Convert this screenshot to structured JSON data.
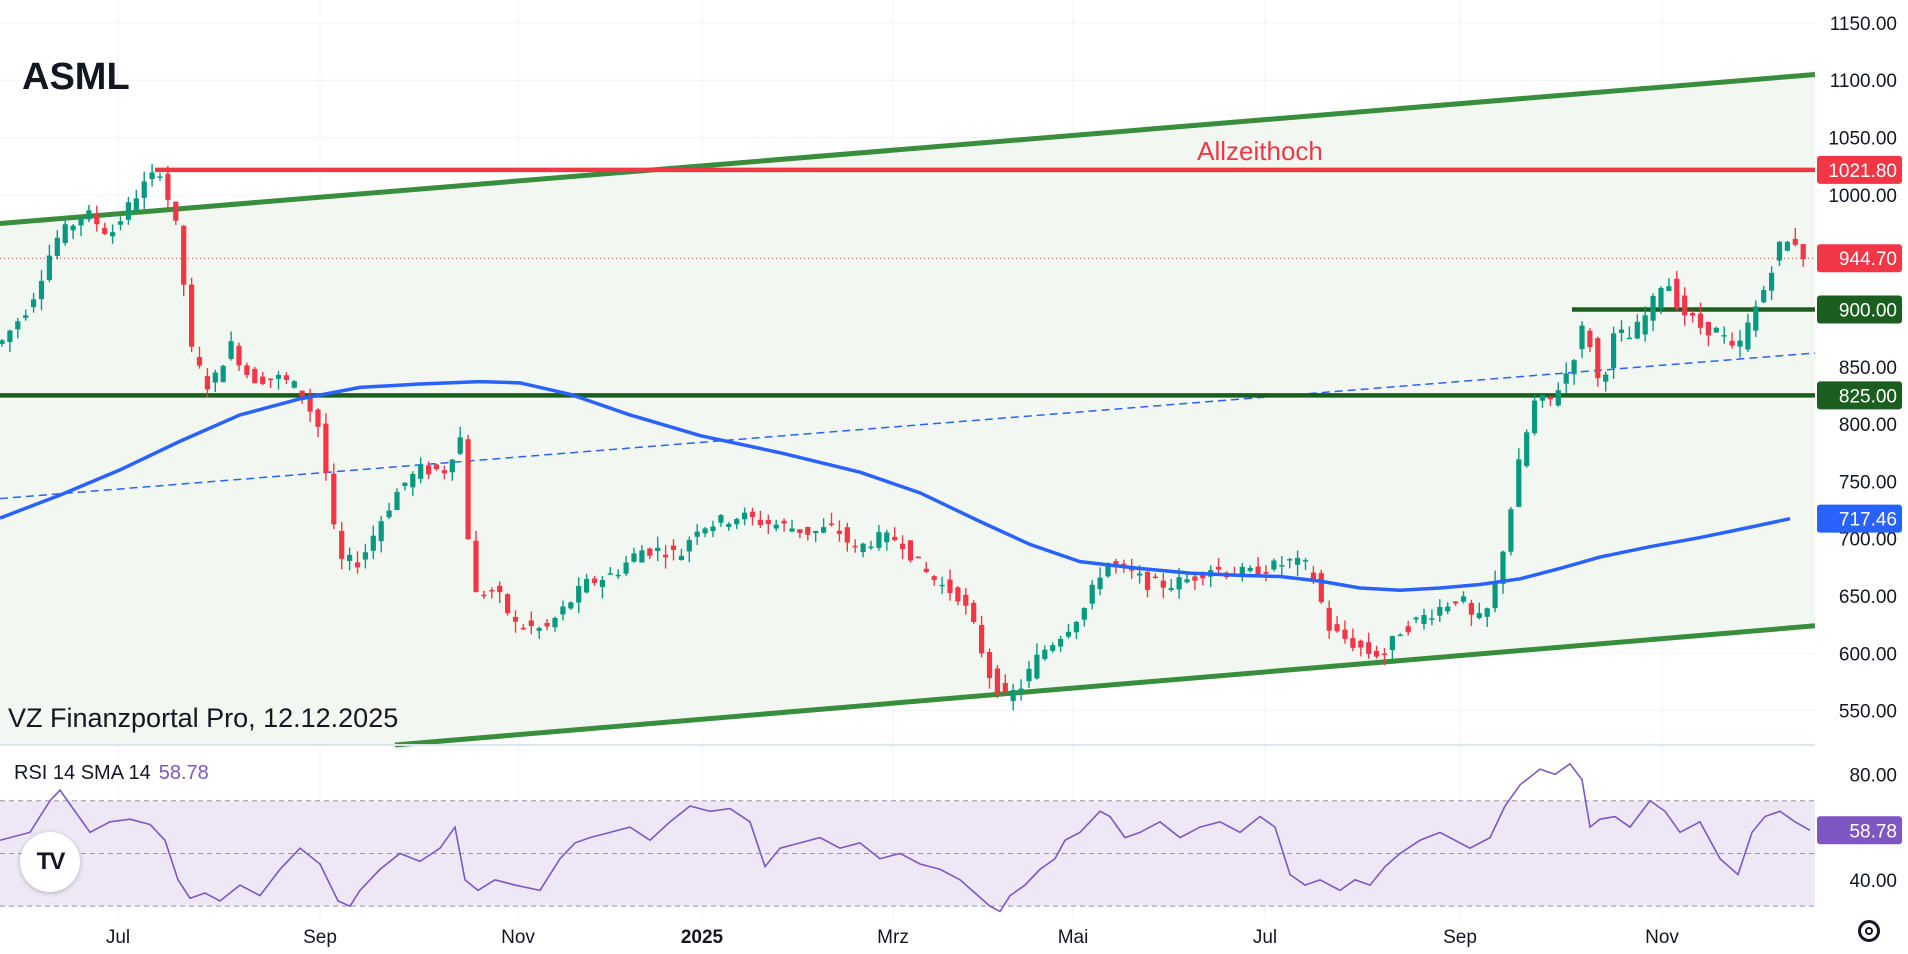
{
  "symbol": "ASML",
  "source": "VZ Finanzportal Pro, 12.12.2025",
  "chart_data": {
    "type": "candlestick",
    "x_axis": {
      "labels": [
        "Jul",
        "Sep",
        "Nov",
        "2025",
        "Mrz",
        "Mai",
        "Jul",
        "Sep",
        "Nov"
      ]
    },
    "y_axis": {
      "ticks": [
        "1150.00",
        "1100.00",
        "1050.00",
        "1000.00",
        "950.00",
        "900.00",
        "850.00",
        "800.00",
        "750.00",
        "700.00",
        "650.00",
        "600.00",
        "550.00"
      ],
      "range": [
        520,
        1170
      ]
    },
    "price_path": [
      [
        0,
        870
      ],
      [
        30,
        905
      ],
      [
        55,
        960
      ],
      [
        85,
        985
      ],
      [
        110,
        965
      ],
      [
        140,
        1005
      ],
      [
        160,
        1021.8
      ],
      [
        178,
        965
      ],
      [
        192,
        860
      ],
      [
        210,
        830
      ],
      [
        230,
        870
      ],
      [
        250,
        840
      ],
      [
        280,
        840
      ],
      [
        300,
        830
      ],
      [
        320,
        795
      ],
      [
        338,
        680
      ],
      [
        360,
        680
      ],
      [
        380,
        715
      ],
      [
        400,
        745
      ],
      [
        420,
        760
      ],
      [
        445,
        760
      ],
      [
        460,
        790
      ],
      [
        473,
        650
      ],
      [
        495,
        655
      ],
      [
        515,
        625
      ],
      [
        545,
        620
      ],
      [
        565,
        640
      ],
      [
        585,
        660
      ],
      [
        615,
        670
      ],
      [
        640,
        690
      ],
      [
        665,
        690
      ],
      [
        680,
        685
      ],
      [
        695,
        710
      ],
      [
        720,
        715
      ],
      [
        740,
        720
      ],
      [
        760,
        715
      ],
      [
        790,
        710
      ],
      [
        810,
        705
      ],
      [
        835,
        710
      ],
      [
        855,
        690
      ],
      [
        875,
        700
      ],
      [
        900,
        700
      ],
      [
        920,
        675
      ],
      [
        940,
        660
      ],
      [
        960,
        650
      ],
      [
        975,
        620
      ],
      [
        990,
        580
      ],
      [
        1005,
        560
      ],
      [
        1020,
        570
      ],
      [
        1040,
        600
      ],
      [
        1065,
        620
      ],
      [
        1085,
        640
      ],
      [
        1105,
        680
      ],
      [
        1130,
        670
      ],
      [
        1150,
        660
      ],
      [
        1170,
        660
      ],
      [
        1190,
        665
      ],
      [
        1210,
        675
      ],
      [
        1230,
        670
      ],
      [
        1250,
        670
      ],
      [
        1270,
        675
      ],
      [
        1290,
        680
      ],
      [
        1310,
        675
      ],
      [
        1330,
        620
      ],
      [
        1350,
        610
      ],
      [
        1370,
        600
      ],
      [
        1385,
        600
      ],
      [
        1400,
        620
      ],
      [
        1420,
        630
      ],
      [
        1440,
        640
      ],
      [
        1460,
        650
      ],
      [
        1475,
        625
      ],
      [
        1490,
        640
      ],
      [
        1505,
        700
      ],
      [
        1520,
        770
      ],
      [
        1535,
        820
      ],
      [
        1550,
        820
      ],
      [
        1570,
        850
      ],
      [
        1585,
        890
      ],
      [
        1600,
        830
      ],
      [
        1615,
        880
      ],
      [
        1630,
        875
      ],
      [
        1650,
        900
      ],
      [
        1665,
        930
      ],
      [
        1680,
        900
      ],
      [
        1700,
        885
      ],
      [
        1720,
        880
      ],
      [
        1735,
        860
      ],
      [
        1750,
        890
      ],
      [
        1765,
        920
      ],
      [
        1778,
        955
      ],
      [
        1795,
        960
      ],
      [
        1805,
        944.7
      ]
    ],
    "sma_200": [
      [
        0,
        718
      ],
      [
        60,
        738
      ],
      [
        120,
        760
      ],
      [
        180,
        785
      ],
      [
        240,
        808
      ],
      [
        300,
        822
      ],
      [
        360,
        832
      ],
      [
        420,
        835
      ],
      [
        480,
        837
      ],
      [
        520,
        836
      ],
      [
        570,
        826
      ],
      [
        630,
        808
      ],
      [
        700,
        790
      ],
      [
        780,
        775
      ],
      [
        860,
        758
      ],
      [
        920,
        740
      ],
      [
        980,
        715
      ],
      [
        1030,
        695
      ],
      [
        1080,
        680
      ],
      [
        1140,
        674
      ],
      [
        1190,
        670
      ],
      [
        1240,
        668
      ],
      [
        1280,
        667
      ],
      [
        1320,
        663
      ],
      [
        1360,
        657
      ],
      [
        1400,
        655
      ],
      [
        1440,
        657
      ],
      [
        1480,
        660
      ],
      [
        1520,
        665
      ],
      [
        1560,
        674
      ],
      [
        1600,
        684
      ],
      [
        1650,
        693
      ],
      [
        1700,
        701
      ],
      [
        1750,
        710
      ],
      [
        1790,
        717.46
      ]
    ],
    "lines": [
      {
        "name": "Allzeithoch",
        "value": 1021.8,
        "color": "#f23645"
      },
      {
        "value": 900.0,
        "color": "#1b5e20",
        "from": 1572
      },
      {
        "value": 825.0,
        "color": "#1b5e20"
      }
    ],
    "channel": {
      "upper": [
        [
          0,
          975
        ],
        [
          1815,
          1105
        ]
      ],
      "lower": [
        [
          395,
          520
        ],
        [
          1815,
          624
        ]
      ],
      "color": "#388e3c"
    },
    "trendline_dashed": {
      "points": [
        [
          0,
          735
        ],
        [
          1815,
          862
        ]
      ],
      "color": "#2962ff"
    },
    "price_labels": [
      {
        "text": "1021.80",
        "value": 1021.8,
        "color": "#f23645"
      },
      {
        "text": "944.70",
        "value": 944.7,
        "color": "#f23645"
      },
      {
        "text": "900.00",
        "value": 900.0,
        "color": "#1b5e20"
      },
      {
        "text": "825.00",
        "value": 825.0,
        "color": "#1b5e20"
      },
      {
        "text": "717.46",
        "value": 717.46,
        "color": "#2962ff"
      }
    ],
    "rsi": {
      "legend": "RSI 14 SMA 14",
      "value_label": "58.78",
      "ticks": [
        "80.00",
        "40.00"
      ],
      "range": [
        24,
        90
      ],
      "band": [
        30,
        70
      ],
      "mid": 50,
      "color": "#7e57c2",
      "band_color": "#ede7f6",
      "values": [
        [
          0,
          55
        ],
        [
          30,
          58
        ],
        [
          50,
          70
        ],
        [
          60,
          74
        ],
        [
          75,
          66
        ],
        [
          90,
          58
        ],
        [
          110,
          62
        ],
        [
          130,
          63
        ],
        [
          150,
          61
        ],
        [
          165,
          55
        ],
        [
          178,
          40
        ],
        [
          190,
          33
        ],
        [
          205,
          35
        ],
        [
          220,
          32
        ],
        [
          240,
          38
        ],
        [
          260,
          34
        ],
        [
          280,
          44
        ],
        [
          300,
          52
        ],
        [
          320,
          46
        ],
        [
          338,
          32
        ],
        [
          350,
          30
        ],
        [
          360,
          36
        ],
        [
          380,
          44
        ],
        [
          400,
          50
        ],
        [
          420,
          47
        ],
        [
          440,
          52
        ],
        [
          455,
          60
        ],
        [
          465,
          40
        ],
        [
          478,
          36
        ],
        [
          495,
          40
        ],
        [
          515,
          38
        ],
        [
          540,
          36
        ],
        [
          560,
          48
        ],
        [
          575,
          54
        ],
        [
          590,
          56
        ],
        [
          610,
          58
        ],
        [
          630,
          60
        ],
        [
          650,
          55
        ],
        [
          670,
          62
        ],
        [
          690,
          68
        ],
        [
          710,
          66
        ],
        [
          730,
          67
        ],
        [
          750,
          62
        ],
        [
          765,
          45
        ],
        [
          780,
          52
        ],
        [
          800,
          54
        ],
        [
          820,
          56
        ],
        [
          840,
          52
        ],
        [
          860,
          54
        ],
        [
          880,
          48
        ],
        [
          900,
          50
        ],
        [
          920,
          46
        ],
        [
          940,
          44
        ],
        [
          960,
          40
        ],
        [
          975,
          35
        ],
        [
          990,
          30
        ],
        [
          1000,
          28
        ],
        [
          1010,
          34
        ],
        [
          1025,
          38
        ],
        [
          1040,
          44
        ],
        [
          1055,
          48
        ],
        [
          1065,
          55
        ],
        [
          1080,
          58
        ],
        [
          1100,
          66
        ],
        [
          1110,
          64
        ],
        [
          1125,
          56
        ],
        [
          1140,
          58
        ],
        [
          1160,
          62
        ],
        [
          1180,
          56
        ],
        [
          1200,
          60
        ],
        [
          1220,
          62
        ],
        [
          1240,
          58
        ],
        [
          1260,
          64
        ],
        [
          1275,
          60
        ],
        [
          1290,
          42
        ],
        [
          1305,
          38
        ],
        [
          1320,
          40
        ],
        [
          1340,
          36
        ],
        [
          1355,
          40
        ],
        [
          1370,
          38
        ],
        [
          1385,
          45
        ],
        [
          1400,
          50
        ],
        [
          1420,
          55
        ],
        [
          1440,
          58
        ],
        [
          1455,
          55
        ],
        [
          1470,
          52
        ],
        [
          1490,
          56
        ],
        [
          1505,
          68
        ],
        [
          1520,
          76
        ],
        [
          1540,
          82
        ],
        [
          1555,
          80
        ],
        [
          1570,
          84
        ],
        [
          1582,
          78
        ],
        [
          1590,
          60
        ],
        [
          1600,
          63
        ],
        [
          1615,
          64
        ],
        [
          1630,
          60
        ],
        [
          1650,
          70
        ],
        [
          1665,
          66
        ],
        [
          1680,
          58
        ],
        [
          1700,
          62
        ],
        [
          1720,
          48
        ],
        [
          1738,
          42
        ],
        [
          1752,
          58
        ],
        [
          1765,
          64
        ],
        [
          1780,
          66
        ],
        [
          1795,
          62
        ],
        [
          1810,
          58.78
        ]
      ]
    }
  }
}
